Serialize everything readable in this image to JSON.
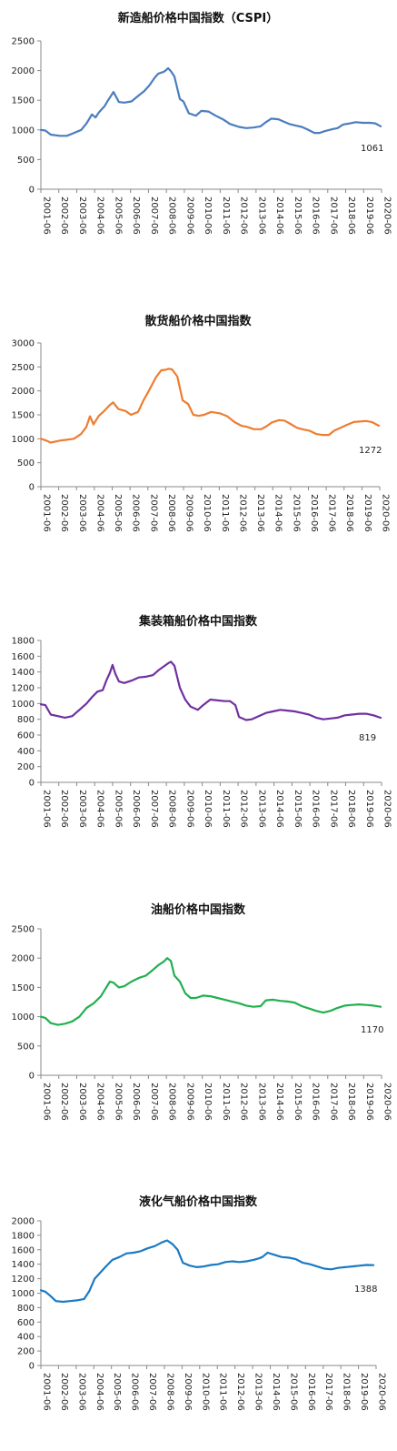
{
  "chart_data": [
    {
      "type": "line",
      "title": "新造船价格中国指数（CSPI）",
      "color": "#4a7dbf",
      "ylim": [
        0,
        2500
      ],
      "yticks": [
        0,
        500,
        1000,
        1500,
        2000,
        2500
      ],
      "grid": false,
      "x_labels": [
        "2001-06",
        "2002-06",
        "2003-06",
        "2004-06",
        "2005-06",
        "2006-06",
        "2007-06",
        "2008-06",
        "2009-06",
        "2010-06",
        "2011-06",
        "2012-06",
        "2013-06",
        "2014-06",
        "2015-06",
        "2016-06",
        "2017-06",
        "2018-06",
        "2019-06",
        "2020-06"
      ],
      "end_label": "1061",
      "series": [
        {
          "x": [
            2001.45,
            2001.7,
            2002.0,
            2002.5,
            2002.9,
            2003.3,
            2003.7,
            2004.0,
            2004.3,
            2004.5,
            2004.7,
            2005.0,
            2005.2,
            2005.5,
            2005.8,
            2006.1,
            2006.5,
            2006.9,
            2007.2,
            2007.5,
            2007.8,
            2008.0,
            2008.3,
            2008.4,
            2008.55,
            2008.7,
            2008.9,
            2009.2,
            2009.4,
            2009.7,
            2010.1,
            2010.4,
            2010.8,
            2011.2,
            2011.6,
            2012.0,
            2012.5,
            2012.9,
            2013.3,
            2013.7,
            2014.0,
            2014.3,
            2014.7,
            2015.0,
            2015.3,
            2015.7,
            2016.0,
            2016.3,
            2016.7,
            2017.0,
            2017.3,
            2017.7,
            2018.0,
            2018.3,
            2018.7,
            2019.0,
            2019.4,
            2019.8,
            2020.1,
            2020.4
          ],
          "values": [
            1000,
            990,
            920,
            900,
            900,
            950,
            1000,
            1110,
            1260,
            1210,
            1300,
            1400,
            1500,
            1640,
            1470,
            1460,
            1480,
            1580,
            1650,
            1750,
            1880,
            1950,
            1980,
            2000,
            2040,
            1990,
            1900,
            1520,
            1480,
            1280,
            1240,
            1320,
            1310,
            1240,
            1180,
            1100,
            1050,
            1030,
            1040,
            1060,
            1130,
            1190,
            1180,
            1140,
            1100,
            1070,
            1050,
            1010,
            950,
            950,
            980,
            1010,
            1030,
            1090,
            1110,
            1130,
            1120,
            1120,
            1110,
            1061
          ]
        }
      ]
    },
    {
      "type": "line",
      "title": "散货船价格中国指数",
      "color": "#ee7d31",
      "ylim": [
        0,
        3000
      ],
      "yticks": [
        0,
        500,
        1000,
        1500,
        2000,
        2500,
        3000
      ],
      "grid": false,
      "x_labels": [
        "2001-06",
        "2002-06",
        "2003-06",
        "2004-06",
        "2005-06",
        "2006-06",
        "2007-06",
        "2008-06",
        "2009-06",
        "2010-06",
        "2011-06",
        "2012-06",
        "2013-06",
        "2014-06",
        "2015-06",
        "2016-06",
        "2017-06",
        "2018-06",
        "2019-06",
        "2020-06"
      ],
      "end_label": "1272",
      "series": [
        {
          "x": [
            2001.45,
            2001.7,
            2002.0,
            2002.5,
            2002.9,
            2003.3,
            2003.7,
            2004.0,
            2004.2,
            2004.4,
            2004.7,
            2005.0,
            2005.3,
            2005.5,
            2005.8,
            2006.2,
            2006.5,
            2006.9,
            2007.2,
            2007.5,
            2007.9,
            2008.2,
            2008.45,
            2008.6,
            2008.8,
            2009.1,
            2009.4,
            2009.7,
            2010.0,
            2010.3,
            2010.6,
            2011.0,
            2011.5,
            2011.9,
            2012.3,
            2012.7,
            2013.0,
            2013.4,
            2013.8,
            2014.1,
            2014.4,
            2014.8,
            2015.1,
            2015.4,
            2015.8,
            2016.1,
            2016.5,
            2016.9,
            2017.2,
            2017.6,
            2017.9,
            2018.2,
            2018.6,
            2019.0,
            2019.3,
            2019.7,
            2020.0,
            2020.4
          ],
          "values": [
            1000,
            970,
            920,
            960,
            980,
            1000,
            1100,
            1250,
            1470,
            1300,
            1480,
            1580,
            1700,
            1760,
            1620,
            1580,
            1500,
            1560,
            1800,
            2000,
            2280,
            2430,
            2440,
            2460,
            2450,
            2300,
            1800,
            1730,
            1500,
            1480,
            1500,
            1560,
            1530,
            1470,
            1350,
            1270,
            1250,
            1200,
            1200,
            1260,
            1340,
            1390,
            1380,
            1320,
            1230,
            1200,
            1170,
            1100,
            1080,
            1080,
            1170,
            1220,
            1290,
            1350,
            1360,
            1370,
            1350,
            1272
          ]
        }
      ]
    },
    {
      "type": "line",
      "title": "集装箱船价格中国指数",
      "color": "#7030a0",
      "ylim": [
        0,
        1800
      ],
      "yticks": [
        0,
        200,
        400,
        600,
        800,
        1000,
        1200,
        1400,
        1600,
        1800
      ],
      "grid": false,
      "x_labels": [
        "2001-06",
        "2002-06",
        "2003-06",
        "2004-06",
        "2005-06",
        "2006-06",
        "2007-06",
        "2008-06",
        "2009-06",
        "2010-06",
        "2011-06",
        "2012-06",
        "2013-06",
        "2014-06",
        "2015-06",
        "2016-06",
        "2017-06",
        "2018-06",
        "2019-06",
        "2020-06"
      ],
      "end_label": "819",
      "series": [
        {
          "x": [
            2001.45,
            2001.7,
            2002.0,
            2002.4,
            2002.8,
            2003.2,
            2003.6,
            2004.0,
            2004.3,
            2004.6,
            2004.9,
            2005.1,
            2005.3,
            2005.45,
            2005.6,
            2005.8,
            2006.1,
            2006.5,
            2006.9,
            2007.3,
            2007.7,
            2008.0,
            2008.3,
            2008.55,
            2008.7,
            2008.9,
            2009.2,
            2009.5,
            2009.8,
            2010.2,
            2010.5,
            2010.9,
            2011.3,
            2011.7,
            2012.0,
            2012.3,
            2012.5,
            2012.9,
            2013.2,
            2013.6,
            2014.0,
            2014.4,
            2014.8,
            2015.2,
            2015.6,
            2016.0,
            2016.4,
            2016.8,
            2017.2,
            2017.6,
            2018.0,
            2018.4,
            2018.8,
            2019.2,
            2019.6,
            2020.0,
            2020.4
          ],
          "values": [
            990,
            980,
            860,
            840,
            820,
            840,
            920,
            1000,
            1080,
            1150,
            1170,
            1290,
            1390,
            1490,
            1380,
            1280,
            1260,
            1290,
            1330,
            1340,
            1360,
            1420,
            1470,
            1510,
            1530,
            1480,
            1200,
            1050,
            960,
            920,
            980,
            1050,
            1040,
            1030,
            1030,
            980,
            830,
            790,
            800,
            840,
            880,
            900,
            920,
            910,
            900,
            880,
            860,
            820,
            800,
            810,
            820,
            850,
            860,
            870,
            870,
            850,
            819
          ]
        }
      ]
    },
    {
      "type": "line",
      "title": "油船价格中国指数",
      "color": "#21b04f",
      "ylim": [
        0,
        2500
      ],
      "yticks": [
        0,
        500,
        1000,
        1500,
        2000,
        2500
      ],
      "grid": false,
      "x_labels": [
        "2001-06",
        "2002-06",
        "2003-06",
        "2004-06",
        "2005-06",
        "2006-06",
        "2007-06",
        "2008-06",
        "2009-06",
        "2010-06",
        "2011-06",
        "2012-06",
        "2013-06",
        "2014-06",
        "2015-06",
        "2016-06",
        "2017-06",
        "2018-06",
        "2019-06",
        "2020-06"
      ],
      "end_label": "1170",
      "series": [
        {
          "x": [
            2001.45,
            2001.7,
            2002.0,
            2002.4,
            2002.8,
            2003.2,
            2003.6,
            2004.0,
            2004.4,
            2004.8,
            2005.1,
            2005.3,
            2005.5,
            2005.8,
            2006.1,
            2006.5,
            2006.9,
            2007.3,
            2007.7,
            2008.0,
            2008.3,
            2008.5,
            2008.7,
            2008.9,
            2009.2,
            2009.5,
            2009.8,
            2010.1,
            2010.5,
            2010.9,
            2011.3,
            2011.7,
            2012.1,
            2012.5,
            2012.9,
            2013.3,
            2013.7,
            2014.0,
            2014.4,
            2014.8,
            2015.2,
            2015.6,
            2016.0,
            2016.4,
            2016.8,
            2017.2,
            2017.6,
            2018.0,
            2018.4,
            2018.8,
            2019.2,
            2019.6,
            2020.0,
            2020.4
          ],
          "values": [
            1000,
            980,
            890,
            860,
            880,
            920,
            1000,
            1150,
            1230,
            1350,
            1500,
            1600,
            1580,
            1500,
            1520,
            1600,
            1660,
            1700,
            1800,
            1880,
            1940,
            2000,
            1950,
            1700,
            1600,
            1400,
            1320,
            1320,
            1360,
            1350,
            1320,
            1290,
            1260,
            1230,
            1190,
            1170,
            1180,
            1280,
            1290,
            1270,
            1260,
            1240,
            1180,
            1140,
            1100,
            1070,
            1100,
            1150,
            1190,
            1200,
            1210,
            1200,
            1190,
            1170
          ]
        }
      ]
    },
    {
      "type": "line",
      "title": "液化气船价格中国指数",
      "color": "#1a7ac3",
      "ylim": [
        0,
        2000
      ],
      "yticks": [
        0,
        200,
        400,
        600,
        800,
        1000,
        1200,
        1400,
        1600,
        1800,
        2000
      ],
      "grid": false,
      "x_labels": [
        "2001-06",
        "2002-06",
        "2003-06",
        "2004-06",
        "2005-06",
        "2006-06",
        "2007-06",
        "2008-06",
        "2009-06",
        "2010-06",
        "2011-06",
        "2012-06",
        "2013-06",
        "2014-06",
        "2015-06",
        "2016-06",
        "2017-06",
        "2018-06",
        "2019-06",
        "2020-06"
      ],
      "end_label": "1388",
      "series": [
        {
          "x": [
            2001.45,
            2001.7,
            2002.0,
            2002.3,
            2002.7,
            2003.1,
            2003.5,
            2003.9,
            2004.2,
            2004.5,
            2004.8,
            2005.1,
            2005.5,
            2005.9,
            2006.3,
            2006.7,
            2007.1,
            2007.5,
            2007.9,
            2008.3,
            2008.6,
            2008.9,
            2009.2,
            2009.5,
            2009.9,
            2010.3,
            2010.7,
            2011.1,
            2011.5,
            2011.9,
            2012.3,
            2012.7,
            2013.1,
            2013.5,
            2013.8,
            2014.0,
            2014.3,
            2014.7,
            2015.1,
            2015.5,
            2015.9,
            2016.3,
            2016.7,
            2017.1,
            2017.5,
            2017.9,
            2018.3,
            2018.7,
            2019.1,
            2019.5,
            2019.9,
            2020.3
          ],
          "values": [
            1040,
            1020,
            960,
            890,
            880,
            890,
            900,
            920,
            1030,
            1200,
            1280,
            1360,
            1460,
            1500,
            1550,
            1560,
            1580,
            1620,
            1650,
            1700,
            1730,
            1680,
            1600,
            1420,
            1380,
            1360,
            1370,
            1390,
            1400,
            1430,
            1440,
            1430,
            1440,
            1460,
            1480,
            1500,
            1560,
            1530,
            1500,
            1490,
            1470,
            1420,
            1400,
            1370,
            1340,
            1330,
            1350,
            1360,
            1370,
            1380,
            1390,
            1388
          ]
        }
      ]
    }
  ]
}
